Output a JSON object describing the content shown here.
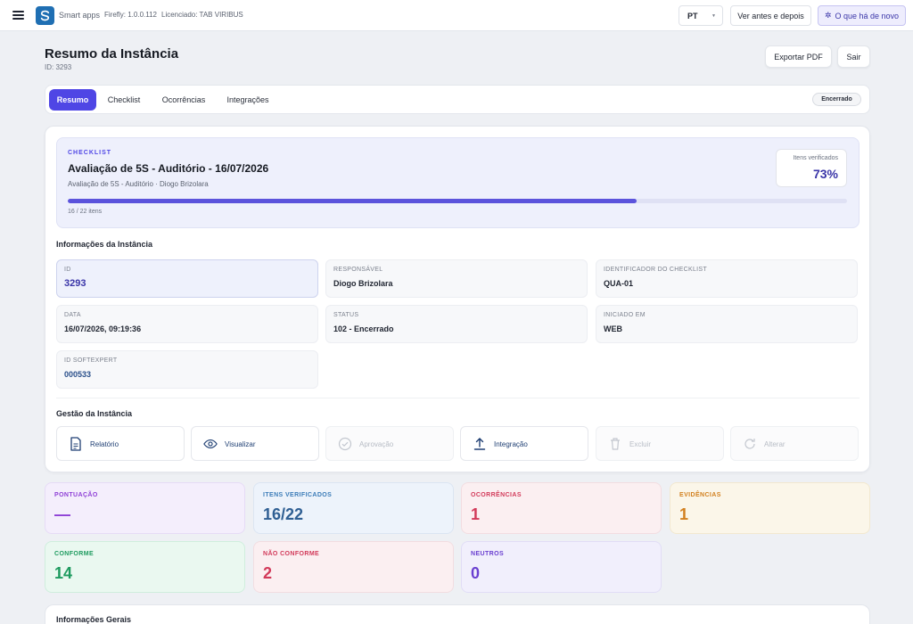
{
  "app": {
    "name": "Smart apps",
    "version": "Firefly: 1.0.0.112",
    "licensed": "Licenciado: TAB VIRIBUS"
  },
  "topbar": {
    "language": "PT",
    "before_after": "Ver antes e depois",
    "whats_new": "O que há de novo"
  },
  "header": {
    "title": "Resumo da Instância",
    "subtitle": "ID: 3293",
    "export_pdf": "Exportar PDF",
    "exit": "Sair"
  },
  "tabs": [
    {
      "label": "Resumo",
      "active": true
    },
    {
      "label": "Checklist",
      "active": false
    },
    {
      "label": "Ocorrências",
      "active": false
    },
    {
      "label": "Integrações",
      "active": false
    }
  ],
  "status_badge": "Encerrado",
  "checklist": {
    "kicker": "CHECKLIST",
    "title": "Avaliação de 5S - Auditório - 16/07/2026",
    "subtitle": "Avaliação de 5S - Auditório · Diogo Brizolara",
    "verified_label": "Itens verificados",
    "verified_value": "73%",
    "progress": 0.73,
    "progress_label": "16 / 22 itens"
  },
  "instance_info": {
    "title": "Informações da Instância",
    "fields": [
      {
        "key": "ID",
        "value": "3293"
      },
      {
        "key": "RESPONSÁVEL",
        "value": "Diogo Brizolara"
      },
      {
        "key": "IDENTIFICADOR DO CHECKLIST",
        "value": "QUA-01"
      },
      {
        "key": "DATA",
        "value": "16/07/2026, 09:19:36"
      },
      {
        "key": "STATUS",
        "value": "102 - Encerrado"
      },
      {
        "key": "INICIADO EM",
        "value": "WEB"
      },
      {
        "key": "ID SOFTEXPERT",
        "value": "000533"
      }
    ]
  },
  "management": {
    "title": "Gestão da Instância",
    "actions": [
      {
        "label": "Relatório",
        "icon": "document-icon",
        "enabled": true
      },
      {
        "label": "Visualizar",
        "icon": "eye-icon",
        "enabled": true
      },
      {
        "label": "Aprovação",
        "icon": "check-circle-icon",
        "enabled": false
      },
      {
        "label": "Integração",
        "icon": "upload-icon",
        "enabled": true
      },
      {
        "label": "Excluir",
        "icon": "trash-icon",
        "enabled": false
      },
      {
        "label": "Alterar",
        "icon": "refresh-icon",
        "enabled": false
      }
    ]
  },
  "stats": [
    {
      "label": "PONTUAÇÃO",
      "value": "—",
      "color": "#8e3fd6"
    },
    {
      "label": "ITENS VERIFICADOS",
      "value": "16/22",
      "color": "#2f5f93"
    },
    {
      "label": "OCORRÊNCIAS",
      "value": "1",
      "color": "#d23a5a"
    },
    {
      "label": "EVIDÊNCIAS",
      "value": "1",
      "color": "#d2801f"
    },
    {
      "label": "CONFORME",
      "value": "14",
      "color": "#1e9b5f"
    },
    {
      "label": "NÃO CONFORME",
      "value": "2",
      "color": "#d23a5a"
    },
    {
      "label": "NEUTROS",
      "value": "0",
      "color": "#6a3fd0"
    }
  ],
  "general_info": {
    "title": "Informações Gerais"
  },
  "colors": {
    "accent": "#4f46e5"
  }
}
